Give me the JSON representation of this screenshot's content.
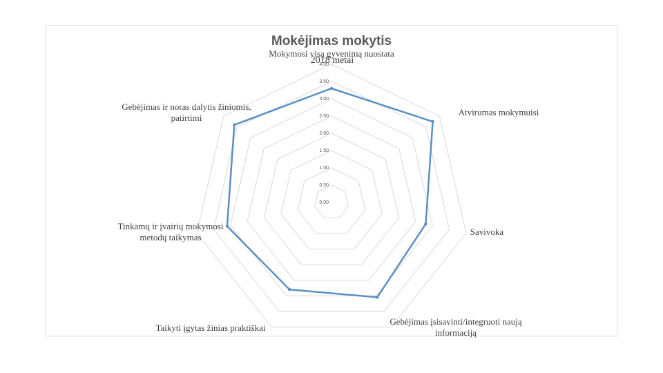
{
  "chart_data": {
    "type": "radar",
    "title": "Mokėjimas mokytis",
    "series": [
      {
        "name": "2018 metai",
        "color": "#5b8fc4",
        "values": [
          3.3,
          3.75,
          2.8,
          3.05,
          2.8,
          3.1,
          3.6
        ]
      }
    ],
    "categories": [
      "Mokymosi visą gyvenimą nuostata",
      "Atvirumas mokymuisi",
      "Savivoka",
      "Gebėjimas įsisavinti/integruoti naują informaciją",
      "Taikyti įgytas žinias praktiškai",
      "Tinkamų ir įvairių mokymosi metodų taikymas",
      "Gebėjimas ir noras dalytis žiniomis, patirtimi"
    ],
    "axis": {
      "min": 0,
      "max": 4,
      "step": 0.5,
      "tick_labels": [
        "0.00",
        "0.50",
        "1.00",
        "1.50",
        "2.00",
        "2.50",
        "3.00",
        "3.50",
        "4.00"
      ]
    },
    "grid": true,
    "legend": "top",
    "colors": {
      "grid": "#d9d9d9",
      "series": "#5b8fc4"
    }
  }
}
